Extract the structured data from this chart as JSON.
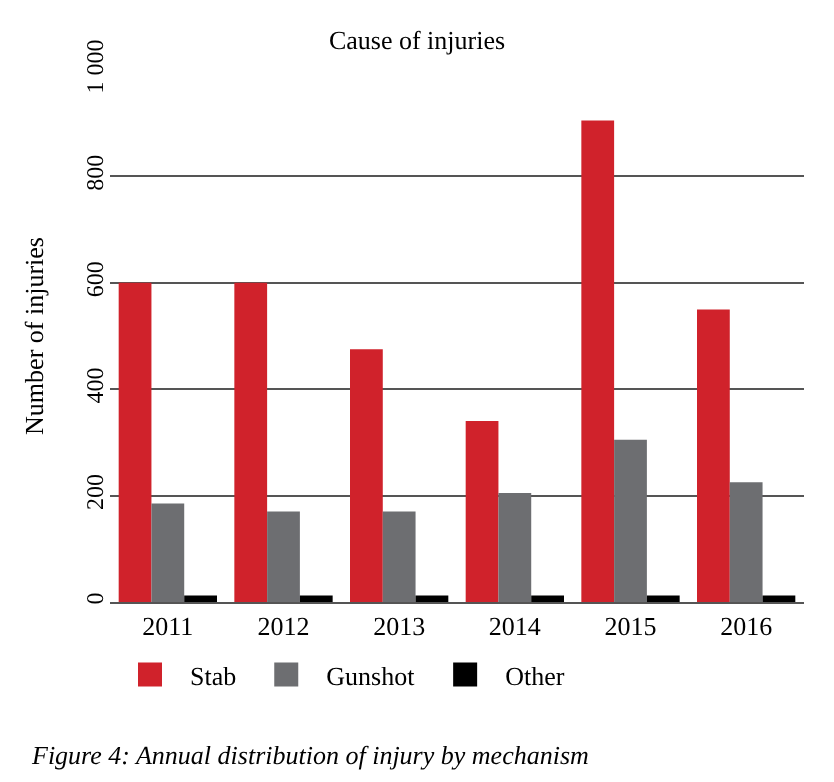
{
  "chart_data": {
    "type": "bar",
    "title": "Cause of injuries",
    "ylabel": "Number of injuries",
    "categories": [
      "2011",
      "2012",
      "2013",
      "2014",
      "2015",
      "2016"
    ],
    "series": [
      {
        "name": "Stab",
        "color": "#d0222b",
        "values": [
          600,
          600,
          475,
          340,
          905,
          550
        ]
      },
      {
        "name": "Gunshot",
        "color": "#6d6e71",
        "values": [
          185,
          170,
          170,
          205,
          305,
          225
        ]
      },
      {
        "name": "Other",
        "color": "#000000",
        "values": [
          12,
          12,
          12,
          12,
          12,
          12
        ]
      }
    ],
    "ylim": [
      0,
      1000
    ],
    "yticks": [
      0,
      200,
      400,
      600,
      800,
      {
        "value": 1000,
        "label": "1 000"
      }
    ],
    "grid": "y",
    "legend": "bottom left",
    "annotations": [
      "Figure 4: Annual distribution of injury by mechanism"
    ]
  }
}
